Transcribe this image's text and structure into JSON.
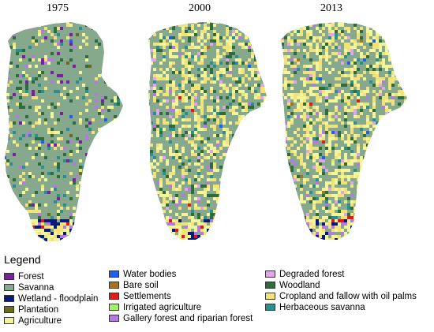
{
  "years": [
    "1975",
    "2000",
    "2013"
  ],
  "legend": {
    "title": "Legend",
    "columns": [
      [
        {
          "label": "Forest",
          "color": "#7a1fa0"
        },
        {
          "label": "Savanna",
          "color": "#86a88c"
        },
        {
          "label": "Wetland - floodplain",
          "color": "#0a1a7a"
        },
        {
          "label": "Plantation",
          "color": "#6b6b1e"
        },
        {
          "label": "Agriculture",
          "color": "#f4f49a"
        }
      ],
      [
        {
          "label": "Water bodies",
          "color": "#1f5ff0"
        },
        {
          "label": "Bare soil",
          "color": "#a3761f"
        },
        {
          "label": "Settlements",
          "color": "#e01a1a"
        },
        {
          "label": "Irrigated agriculture",
          "color": "#a6f06b"
        },
        {
          "label": "Gallery forest and riparian forest",
          "color": "#b57ae0"
        }
      ],
      [
        {
          "label": "Degraded forest",
          "color": "#e0a6e8"
        },
        {
          "label": "Woodland",
          "color": "#2e6b3d"
        },
        {
          "label": "Cropland and fallow with oil palms",
          "color": "#f2e27a"
        },
        {
          "label": "Herbaceous savanna",
          "color": "#2a8f8f"
        }
      ]
    ]
  }
}
